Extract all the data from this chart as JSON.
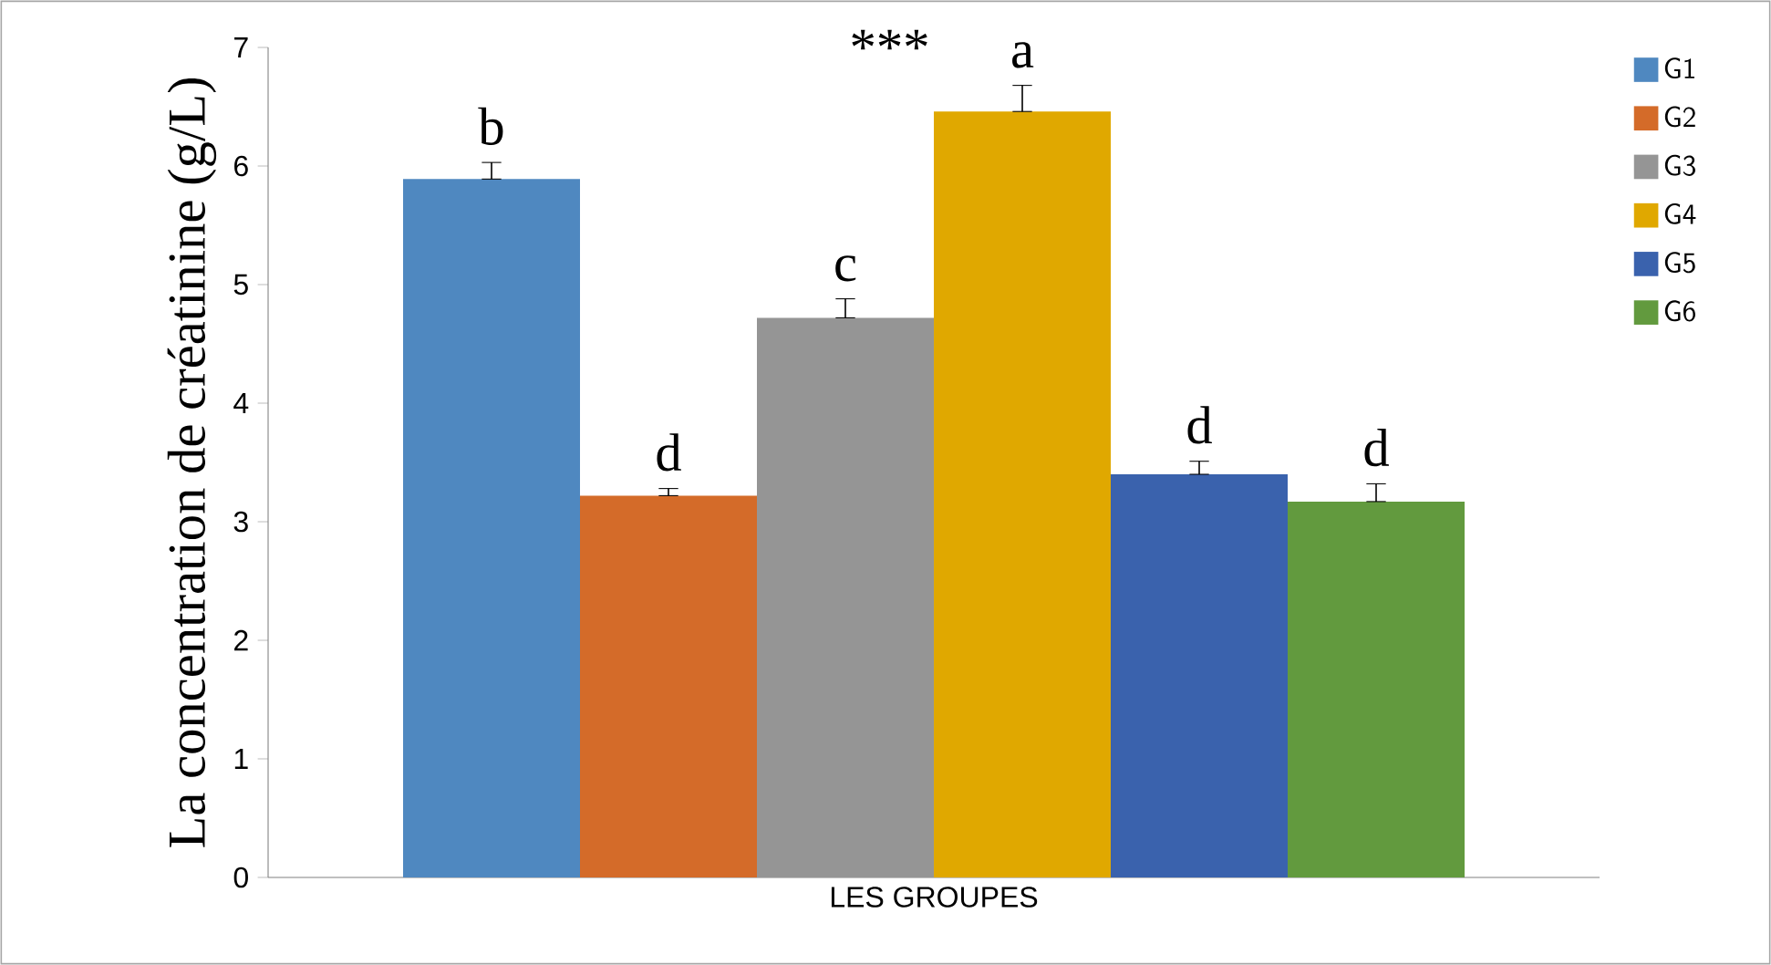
{
  "chart_data": {
    "type": "bar",
    "ylabel": "La concentration de créatinine (g/L)",
    "xlabel": "LES GROUPES",
    "categories": [
      null
    ],
    "series": [
      {
        "name": "G1",
        "color": "#4f88c0",
        "values": [
          5.89
        ],
        "errors": [
          [
            5.89,
            6.03
          ]
        ]
      },
      {
        "name": "G2",
        "color": "#d46b29",
        "values": [
          3.22
        ],
        "errors": [
          [
            3.22,
            3.28
          ]
        ]
      },
      {
        "name": "G3",
        "color": "#959595",
        "values": [
          4.72
        ],
        "errors": [
          [
            4.72,
            4.88
          ]
        ]
      },
      {
        "name": "G4",
        "color": "#e0a800",
        "values": [
          6.46
        ],
        "errors": [
          [
            6.46,
            6.68
          ]
        ]
      },
      {
        "name": "G5",
        "color": "#3a62ad",
        "values": [
          3.4
        ],
        "errors": [
          [
            3.4,
            3.51
          ]
        ]
      },
      {
        "name": "G6",
        "color": "#629a3e",
        "values": [
          3.17
        ],
        "errors": [
          [
            3.17,
            3.32
          ]
        ]
      }
    ],
    "ylim": [
      0,
      7
    ],
    "yticks": [
      0,
      1,
      2,
      3,
      4,
      5,
      6,
      7
    ],
    "legend": "right",
    "annotations": [
      "b",
      "d",
      "c",
      "a",
      "d",
      "d",
      "***"
    ]
  }
}
